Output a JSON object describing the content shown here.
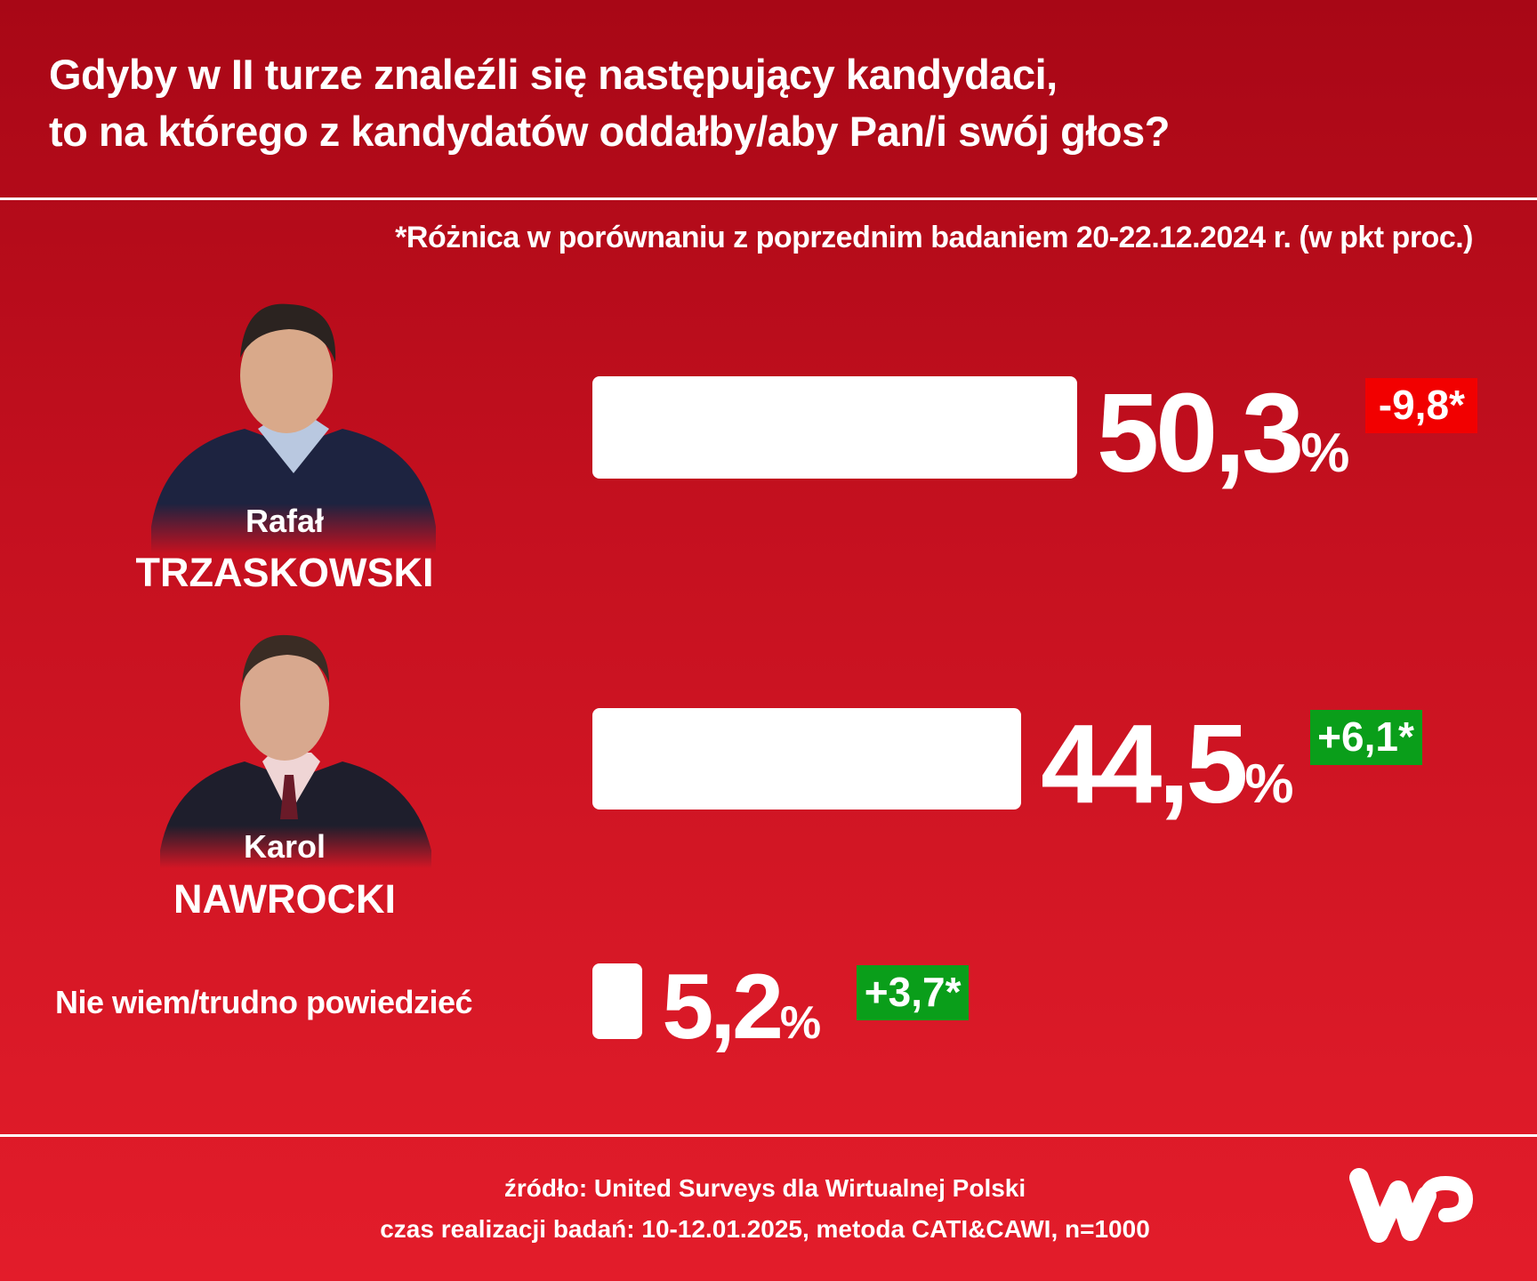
{
  "title": {
    "line1": "Gdyby w II turze znaleźli się następujący kandydaci,",
    "line2": "to na którego z kandydatów oddałby/aby Pan/i swój głos?"
  },
  "note": "*Różnica w porównaniu z poprzednim badaniem 20-22.12.2024 r. (w pkt proc.)",
  "chart_data": {
    "type": "bar",
    "title": "Gdyby w II turze znaleźli się następujący kandydaci, to na którego z kandydatów oddałby/aby Pan/i swój głos?",
    "categories": [
      "Rafał TRZASKOWSKI",
      "Karol NAWROCKI",
      "Nie wiem/trudno powiedzieć"
    ],
    "values": [
      50.3,
      44.5,
      5.2
    ],
    "labels": [
      "50,3",
      "44,5",
      "5,2"
    ],
    "unit": "%",
    "changes": [
      "-9,8*",
      "+6,1*",
      "+3,7*"
    ],
    "change_colors": [
      "#f20000",
      "#0a9e1a",
      "#0a9e1a"
    ],
    "candidates": [
      {
        "first": "Rafał",
        "last": "TRZASKOWSKI"
      },
      {
        "first": "Karol",
        "last": "NAWROCKI"
      }
    ],
    "other_label": "Nie wiem/trudno powiedzieć"
  },
  "footer": {
    "source": "źródło: United Surveys dla Wirtualnej Polski",
    "method": "czas realizacji badań: 10-12.01.2025, metoda CATI&CAWI, n=1000"
  },
  "logo": {
    "text": "WP"
  }
}
